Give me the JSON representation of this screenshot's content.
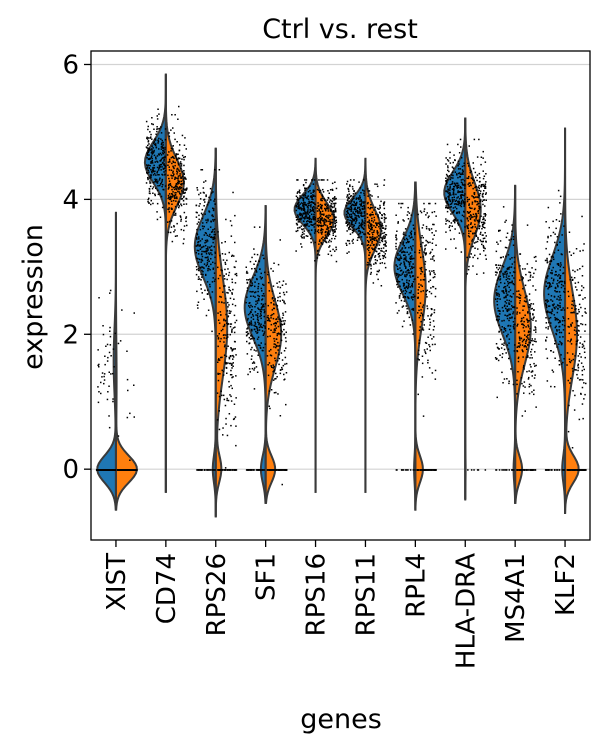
{
  "chart_data": {
    "type": "violin",
    "split": true,
    "title": "Ctrl vs. rest",
    "xlabel": "genes",
    "ylabel": "expression",
    "ylim": [
      -1.05,
      6.2
    ],
    "yticks": [
      0,
      2,
      4,
      6
    ],
    "grid": true,
    "groups": [
      {
        "name": "Ctrl",
        "color": "#1f77b4"
      },
      {
        "name": "rest",
        "color": "#ff7f0e"
      }
    ],
    "categories": [
      "XIST",
      "CD74",
      "RPS26",
      "SF1",
      "RPS16",
      "RPS11",
      "RPL4",
      "HLA-DRA",
      "MS4A1",
      "KLF2"
    ],
    "genes": [
      {
        "name": "XIST",
        "min": -0.6,
        "max": 3.8,
        "left": {
          "zero": 0.85,
          "mu": 1.6,
          "sd": 0.5
        },
        "right": {
          "zero": 0.95,
          "mu": 1.3,
          "sd": 0.6
        }
      },
      {
        "name": "CD74",
        "min": -0.35,
        "max": 5.85,
        "left": {
          "zero": 0.0,
          "mu": 4.55,
          "sd": 0.3
        },
        "right": {
          "zero": 0.0,
          "mu": 4.25,
          "sd": 0.35
        }
      },
      {
        "name": "RPS26",
        "min": -0.7,
        "max": 4.75,
        "left": {
          "zero": 0.1,
          "mu": 3.3,
          "sd": 0.45
        },
        "right": {
          "zero": 0.18,
          "mu": 2.1,
          "sd": 0.75
        }
      },
      {
        "name": "SF1",
        "min": -0.5,
        "max": 3.9,
        "left": {
          "zero": 0.15,
          "mu": 2.4,
          "sd": 0.45
        },
        "right": {
          "zero": 0.3,
          "mu": 2.0,
          "sd": 0.5
        }
      },
      {
        "name": "RPS16",
        "min": -0.35,
        "max": 4.6,
        "left": {
          "zero": 0.0,
          "mu": 3.85,
          "sd": 0.22
        },
        "right": {
          "zero": 0.0,
          "mu": 3.7,
          "sd": 0.25
        }
      },
      {
        "name": "RPS11",
        "min": -0.35,
        "max": 4.6,
        "left": {
          "zero": 0.0,
          "mu": 3.8,
          "sd": 0.22
        },
        "right": {
          "zero": 0.0,
          "mu": 3.55,
          "sd": 0.3
        }
      },
      {
        "name": "RPL4",
        "min": -0.6,
        "max": 4.25,
        "left": {
          "zero": 0.05,
          "mu": 3.0,
          "sd": 0.4
        },
        "right": {
          "zero": 0.3,
          "mu": 2.7,
          "sd": 0.6
        }
      },
      {
        "name": "HLA-DRA",
        "min": -0.45,
        "max": 5.2,
        "left": {
          "zero": 0.0,
          "mu": 4.1,
          "sd": 0.3
        },
        "right": {
          "zero": 0.02,
          "mu": 3.85,
          "sd": 0.4
        }
      },
      {
        "name": "MS4A1",
        "min": -0.5,
        "max": 4.2,
        "left": {
          "zero": 0.05,
          "mu": 2.5,
          "sd": 0.5
        },
        "right": {
          "zero": 0.22,
          "mu": 2.1,
          "sd": 0.55
        }
      },
      {
        "name": "KLF2",
        "min": -0.65,
        "max": 5.05,
        "left": {
          "zero": 0.08,
          "mu": 2.6,
          "sd": 0.55
        },
        "right": {
          "zero": 0.38,
          "mu": 2.0,
          "sd": 0.65
        }
      }
    ]
  }
}
